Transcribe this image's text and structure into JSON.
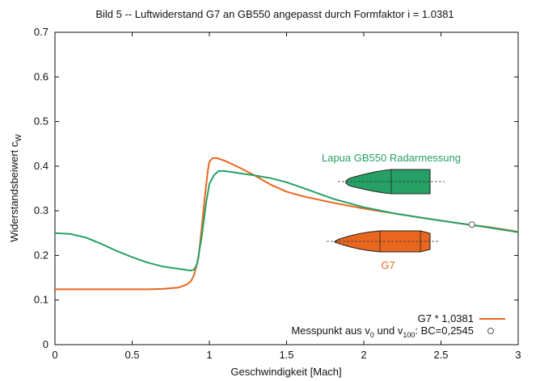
{
  "chart_data": {
    "type": "line",
    "title": "Bild 5 -- Luftwiderstand G7 an GB550 angepasst durch Formfaktor i = 1.0381",
    "xlabel": "Geschwindigkeit [Mach]",
    "ylabel": "Widerstandsbeiwert c",
    "ylabel_sub": "W",
    "xlim": [
      0,
      3
    ],
    "ylim": [
      0,
      0.7
    ],
    "x_ticks": [
      "0",
      "0.5",
      "1",
      "1.5",
      "2",
      "2.5",
      "3"
    ],
    "y_ticks": [
      "0",
      "0.1",
      "0.2",
      "0.3",
      "0.4",
      "0.5",
      "0.6",
      "0.7"
    ],
    "grid": false,
    "legend_position": "bottom-right",
    "series": [
      {
        "name": "G7 * 1,0381",
        "color": "#e8661e",
        "x": [
          0,
          0.2,
          0.4,
          0.6,
          0.7,
          0.8,
          0.85,
          0.88,
          0.9,
          0.93,
          0.95,
          0.97,
          0.99,
          1.0,
          1.02,
          1.05,
          1.1,
          1.15,
          1.2,
          1.3,
          1.4,
          1.5,
          1.6,
          1.8,
          2.0,
          2.2,
          2.4,
          2.6,
          2.7,
          2.8,
          3.0
        ],
        "y": [
          0.124,
          0.124,
          0.124,
          0.124,
          0.125,
          0.128,
          0.134,
          0.142,
          0.155,
          0.195,
          0.26,
          0.33,
          0.39,
          0.41,
          0.418,
          0.418,
          0.412,
          0.404,
          0.396,
          0.378,
          0.358,
          0.343,
          0.333,
          0.318,
          0.305,
          0.294,
          0.283,
          0.273,
          0.268,
          0.264,
          0.253
        ]
      },
      {
        "name": "Lapua GB550 Radarmessung",
        "color": "#26a065",
        "x": [
          0,
          0.1,
          0.2,
          0.3,
          0.4,
          0.5,
          0.6,
          0.7,
          0.8,
          0.88,
          0.9,
          0.92,
          0.95,
          0.98,
          1.0,
          1.03,
          1.06,
          1.1,
          1.2,
          1.3,
          1.4,
          1.5,
          1.6,
          1.8,
          2.0,
          2.2,
          2.4,
          2.6,
          2.7,
          2.8,
          3.0
        ],
        "y": [
          0.25,
          0.248,
          0.24,
          0.226,
          0.21,
          0.196,
          0.184,
          0.175,
          0.17,
          0.166,
          0.168,
          0.18,
          0.24,
          0.32,
          0.36,
          0.38,
          0.389,
          0.389,
          0.384,
          0.379,
          0.373,
          0.364,
          0.352,
          0.327,
          0.308,
          0.294,
          0.283,
          0.273,
          0.268,
          0.263,
          0.252
        ]
      }
    ],
    "points": [
      {
        "name": "Messpunkt aus v0 und v100: BC=0,2545",
        "x": 2.7,
        "y": 0.269
      }
    ],
    "annotations": [
      {
        "text": "Lapua GB550 Radarmessung",
        "color": "#26a065"
      },
      {
        "text": "G7",
        "color": "#e8661e"
      }
    ],
    "legend": [
      {
        "label": "G7 * 1,0381",
        "kind": "line",
        "color": "#e8661e"
      },
      {
        "label_parts": [
          "Messpunkt aus v",
          "0",
          " und v",
          "100",
          ": BC=0,2545"
        ],
        "kind": "point"
      }
    ]
  }
}
